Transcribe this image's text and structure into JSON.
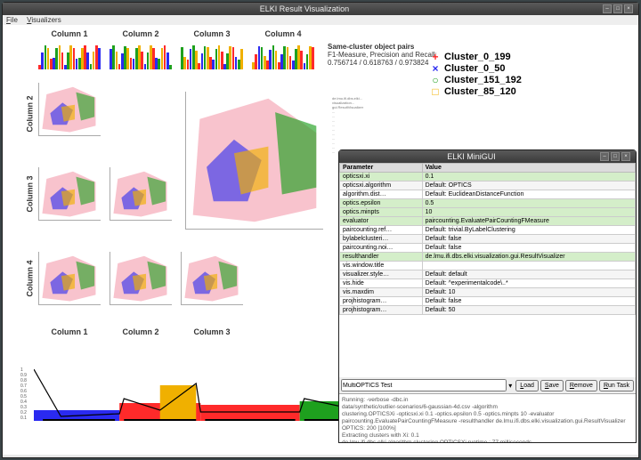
{
  "main_window": {
    "title": "ELKI Result Visualization",
    "menu": [
      "File",
      "Visualizers"
    ]
  },
  "columns": [
    "Column 1",
    "Column 2",
    "Column 3",
    "Column 4"
  ],
  "rows": [
    "Column 2",
    "Column 3",
    "Column 4"
  ],
  "bottom_cols": [
    "Column 1",
    "Column 2",
    "Column 3"
  ],
  "cluster_colors": {
    "c0": "#ff2a2a",
    "c1": "#2a2af0",
    "c2": "#1ea01e",
    "c3": "#f0b000",
    "pink": "#f7b8c4"
  },
  "legend": {
    "title": "Same-cluster object pairs",
    "subtitle": "F1-Measure, Precision and Recall:",
    "values": "0.756714 / 0.618763 / 0.973824",
    "items": [
      {
        "mark": "+",
        "color": "#ff2a2a",
        "label": "Cluster_0_199"
      },
      {
        "mark": "×",
        "color": "#2a2af0",
        "label": "Cluster_0_50"
      },
      {
        "mark": "○",
        "color": "#1ea01e",
        "label": "Cluster_151_192"
      },
      {
        "mark": "□",
        "color": "#f0b000",
        "label": "Cluster_85_120"
      }
    ]
  },
  "density_yticks": [
    "1",
    "0.9",
    "0.8",
    "0.7",
    "0.6",
    "0.5",
    "0.4",
    "0.3",
    "0.2",
    "0.1"
  ],
  "minigui": {
    "title": "ELKI MiniGUI",
    "headers": [
      "Parameter",
      "Value"
    ],
    "rows": [
      {
        "p": "opticsxi.xi",
        "v": "0.1",
        "g": true
      },
      {
        "p": "opticsxi.algorithm",
        "v": "Default: OPTICS",
        "g": false
      },
      {
        "p": "algorithm.dist…",
        "v": "Default: EuclideanDistanceFunction",
        "g": false
      },
      {
        "p": "optics.epsilon",
        "v": "0.5",
        "g": true
      },
      {
        "p": "optics.minpts",
        "v": "10",
        "g": true
      },
      {
        "p": "evaluator",
        "v": "paircounting.EvaluatePairCountingFMeasure",
        "g": true
      },
      {
        "p": "paircounting.ref…",
        "v": "Default: trivial.ByLabelClustering",
        "g": false
      },
      {
        "p": "bylabelclusteri…",
        "v": "Default: false",
        "g": false
      },
      {
        "p": "paircounting.noi…",
        "v": "Default: false",
        "g": false
      },
      {
        "p": "resulthandler",
        "v": "de.lmu.ifi.dbs.elki.visualization.gui.ResultVisualizer",
        "g": true
      },
      {
        "p": "vis.window.title",
        "v": "",
        "g": false
      },
      {
        "p": "visualizer.style…",
        "v": "Default: default",
        "g": false
      },
      {
        "p": "vis.hide",
        "v": "Default: ^experimentalcode\\..*",
        "g": false
      },
      {
        "p": "vis.maxdim",
        "v": "Default: 10",
        "g": false
      },
      {
        "p": "projhistogram…",
        "v": "Default: false",
        "g": false
      },
      {
        "p": "projhistogram…",
        "v": "Default: 50",
        "g": false
      }
    ],
    "combo": "MultiOPTICS Test",
    "buttons": [
      "Load",
      "Save",
      "Remove",
      "Run Task"
    ],
    "log": [
      "Running: -verbose -dbc.in",
      "                                        data/synthetic/outlier-scenarios/6-gaussian-4d.csv -algorithm",
      "clustering.OPTICSXi -opticsxi.xi 0.1 -optics.epsilon 0.5 -optics.minpts 10 -evaluator",
      "paircounting.EvaluatePairCountingFMeasure -resulthandler de.lmu.ifi.dbs.elki.visualization.gui.ResultVisualizer",
      "OPTICS: 200 [100%]",
      "Extracting clusters with Xi: 0.1",
      "de.lmu.ifi.dbs.elki.algorithm.clustering.OPTICSXi.runtime : 77 milliseconds."
    ]
  }
}
